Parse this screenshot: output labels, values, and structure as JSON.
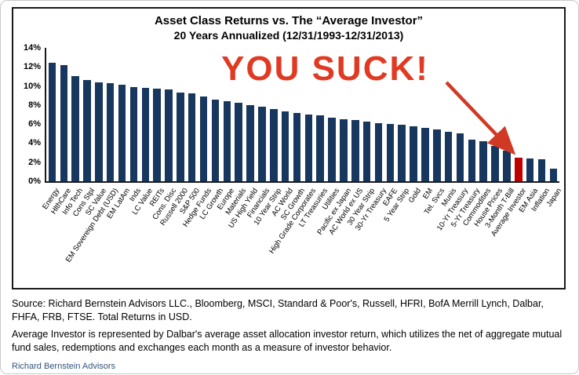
{
  "chart": {
    "title_line1": "Asset Class Returns vs. The “Average Investor”",
    "title_line2": "20 Years Annualized (12/31/1993-12/31/2013)",
    "annotation": {
      "text": "YOU SUCK!",
      "color": "#e03a22"
    }
  },
  "chart_data": {
    "type": "bar",
    "title": "Asset Class Returns vs. The “Average Investor”",
    "subtitle": "20 Years Annualized (12/31/1993-12/31/2013)",
    "xlabel": "",
    "ylabel": "",
    "ylim": [
      0,
      14
    ],
    "yticks": [
      "14%",
      "12%",
      "10%",
      "8%",
      "6%",
      "4%",
      "2%",
      "0%"
    ],
    "grid": false,
    "legend": false,
    "bar_color": "#17375e",
    "highlight_color": "#c00000",
    "highlight_category": "Average Investor",
    "annotation": "YOU SUCK!",
    "categories": [
      "Energy",
      "HlthCare",
      "Info Tech",
      "Cons Stpl",
      "SC Value",
      "EM Sovereign Debt (USD)",
      "EM LatAm",
      "Inds",
      "LC Value",
      "REITs",
      "Cons. Disc",
      "Russell 2000",
      "S&P 500",
      "Hedge Funds",
      "LC Growth",
      "Europe",
      "Materials",
      "US High Yield",
      "Financials",
      "10 Year Strip",
      "AC World",
      "SC Growth",
      "High Grade Corporates",
      "LT Treasuries",
      "Utilities",
      "Pacific ex Japan",
      "AC World ex US",
      "30 Year Strip",
      "30-Yr Treasury",
      "EAFE",
      "5 Year Strip",
      "Gold",
      "EM",
      "Tel. Svcs",
      "Munis",
      "10-Yr Treasury",
      "5-Yr Treasury",
      "Commodities",
      "House Prices",
      "3-Month T-Bill",
      "Average Investor",
      "EM Asia",
      "Inflation",
      "Japan"
    ],
    "values": [
      12.4,
      12.2,
      11.0,
      10.6,
      10.4,
      10.3,
      10.1,
      9.9,
      9.8,
      9.7,
      9.6,
      9.3,
      9.2,
      8.9,
      8.6,
      8.4,
      8.2,
      8.0,
      7.8,
      7.6,
      7.3,
      7.2,
      7.0,
      6.9,
      6.7,
      6.5,
      6.4,
      6.3,
      6.1,
      6.0,
      5.9,
      5.8,
      5.6,
      5.4,
      5.2,
      5.0,
      4.4,
      4.2,
      3.7,
      3.2,
      2.5,
      2.4,
      2.3,
      1.3
    ]
  },
  "footer": {
    "source_text": "Source: Richard Bernstein Advisors LLC., Bloomberg, MSCI, Standard & Poor's, Russell, HFRI, BofA Merrill Lynch, Dalbar, FHFA, FRB, FTSE.  Total Returns in USD.",
    "average_investor_note": "Average Investor is represented by Dalbar's average asset allocation investor return, which utilizes the net of aggregate mutual fund sales, redemptions and exchanges each month as a measure of investor behavior.",
    "brand": "Richard Bernstein Advisors"
  }
}
